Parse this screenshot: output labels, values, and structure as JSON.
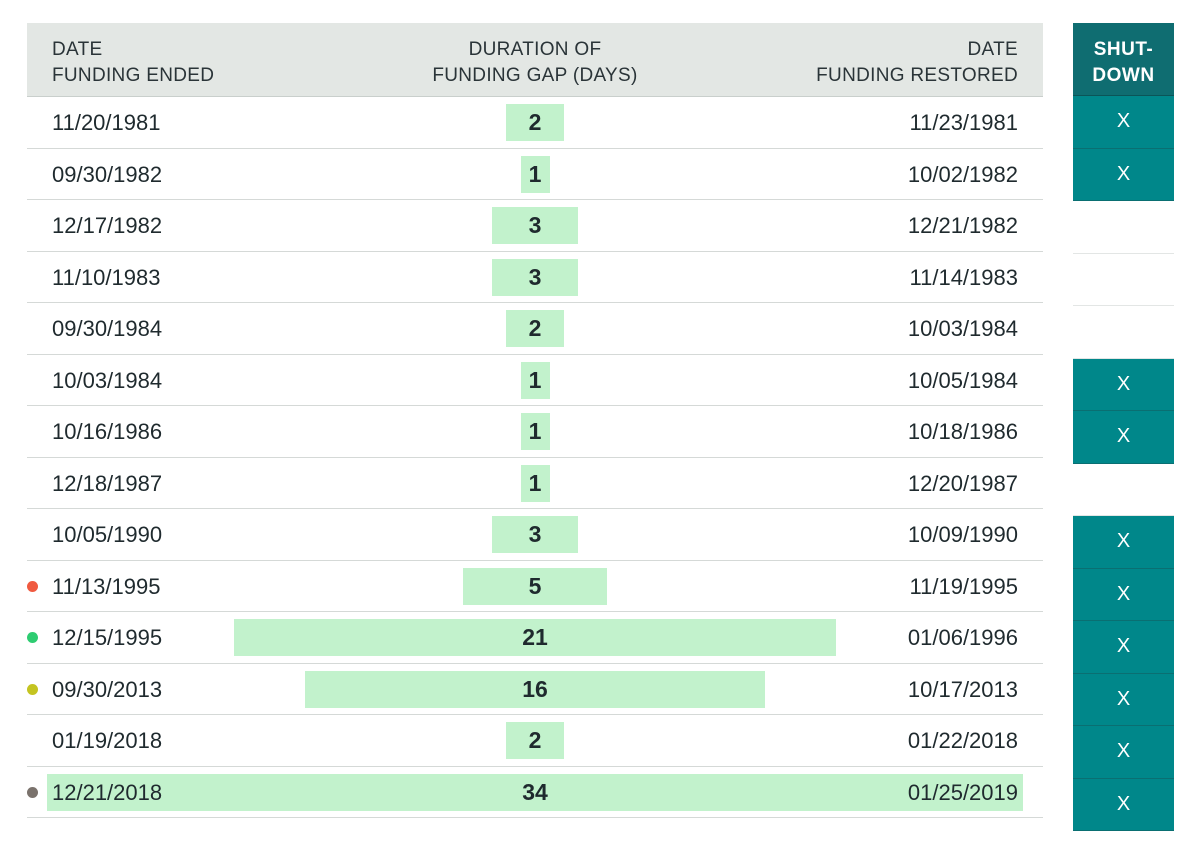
{
  "headers": {
    "ended": "DATE\nFUNDING ENDED",
    "duration": "DURATION OF\nFUNDING GAP (DAYS)",
    "restored": "DATE\nFUNDING RESTORED",
    "shutdown": "SHUT-\nDOWN"
  },
  "colors": {
    "bar": "#c2f2cc",
    "header_bg": "#e3e7e4",
    "shutdown_header": "#0f6d71",
    "shutdown_cell": "#00878a",
    "dot_1995_nov": "#f05a40",
    "dot_1995_dec": "#2ecc71",
    "dot_2013": "#c4c421",
    "dot_2018": "#7a726c"
  },
  "chart_data": {
    "type": "table",
    "columns": [
      "DATE FUNDING ENDED",
      "DURATION OF FUNDING GAP (DAYS)",
      "DATE FUNDING RESTORED",
      "SHUT-DOWN"
    ],
    "max_duration": 34,
    "rows": [
      {
        "ended": "11/20/1981",
        "days": 2,
        "days_label": "2",
        "restored": "11/23/1981",
        "shutdown": "X",
        "dot": null
      },
      {
        "ended": "09/30/1982",
        "days": 1,
        "days_label": "1",
        "restored": "10/02/1982",
        "shutdown": "X",
        "dot": null
      },
      {
        "ended": "12/17/1982",
        "days": 3,
        "days_label": "3",
        "restored": "12/21/1982",
        "shutdown": "",
        "dot": null
      },
      {
        "ended": "11/10/1983",
        "days": 3,
        "days_label": "3",
        "restored": "11/14/1983",
        "shutdown": "",
        "dot": null
      },
      {
        "ended": "09/30/1984",
        "days": 2,
        "days_label": "2",
        "restored": "10/03/1984",
        "shutdown": "",
        "dot": null
      },
      {
        "ended": "10/03/1984",
        "days": 1,
        "days_label": "1",
        "restored": "10/05/1984",
        "shutdown": "X",
        "dot": null
      },
      {
        "ended": "10/16/1986",
        "days": 1,
        "days_label": "1",
        "restored": "10/18/1986",
        "shutdown": "X",
        "dot": null
      },
      {
        "ended": "12/18/1987",
        "days": 1,
        "days_label": "1",
        "restored": "12/20/1987",
        "shutdown": "",
        "dot": null
      },
      {
        "ended": "10/05/1990",
        "days": 3,
        "days_label": "3",
        "restored": "10/09/1990",
        "shutdown": "X",
        "dot": null
      },
      {
        "ended": "11/13/1995",
        "days": 5,
        "days_label": "5",
        "restored": "11/19/1995",
        "shutdown": "X",
        "dot": "#f05a40"
      },
      {
        "ended": "12/15/1995",
        "days": 21,
        "days_label": "21",
        "restored": "01/06/1996",
        "shutdown": "X",
        "dot": "#2ecc71"
      },
      {
        "ended": "09/30/2013",
        "days": 16,
        "days_label": "16",
        "restored": "10/17/2013",
        "shutdown": "X",
        "dot": "#c4c421"
      },
      {
        "ended": "01/19/2018",
        "days": 2,
        "days_label": "2",
        "restored": "01/22/2018",
        "shutdown": "X",
        "dot": null
      },
      {
        "ended": "12/21/2018",
        "days": 34,
        "days_label": "34",
        "restored": "01/25/2019",
        "shutdown": "X",
        "dot": "#7a726c"
      }
    ]
  }
}
